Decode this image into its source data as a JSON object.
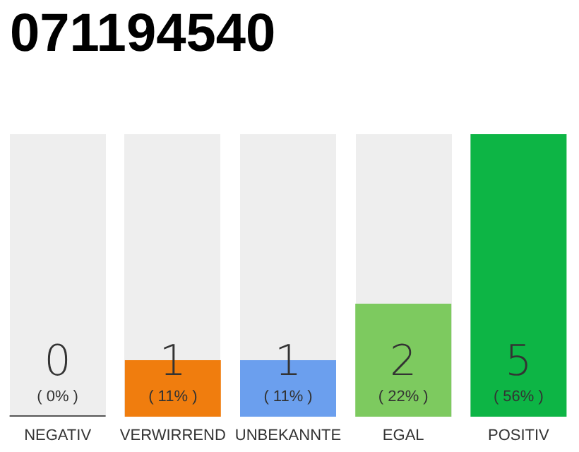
{
  "chart_data": {
    "type": "bar",
    "title": "071194540",
    "categories": [
      "NEGATIV",
      "VERWIRREND",
      "UNBEKANNTE",
      "EGAL",
      "POSITIV"
    ],
    "values": [
      0,
      1,
      1,
      2,
      5
    ],
    "colors": [
      "#555555",
      "#f07d0e",
      "#6b9fee",
      "#7dca5f",
      "#0db545"
    ],
    "value_labels": [
      "0\n( 0% )",
      "1\n( 11% )",
      "1\n( 11% )",
      "2\n( 22% )",
      "5\n( 56% )"
    ],
    "ylim": [
      0,
      5
    ],
    "grid": false,
    "tick_labels": "x"
  }
}
